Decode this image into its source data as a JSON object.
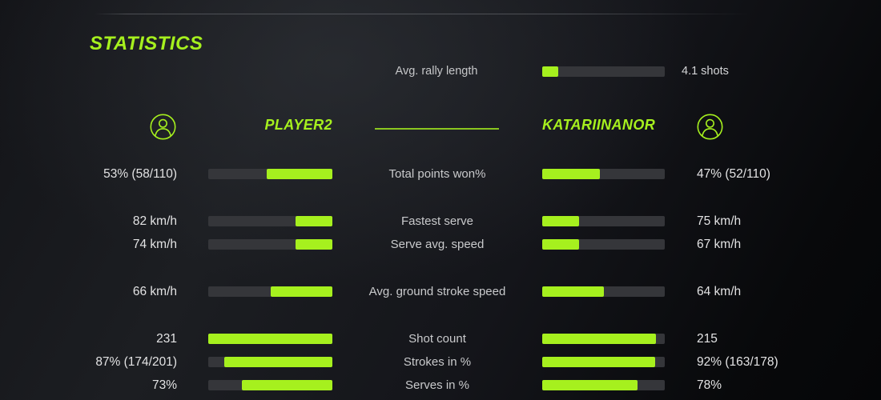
{
  "accent_color": "#a6f01e",
  "bar_track_color": "#35363a",
  "title": "STATISTICS",
  "rally": {
    "label": "Avg. rally length",
    "value": "4.1 shots",
    "fill_pct": 13
  },
  "players": {
    "left": {
      "name": "PLAYER2",
      "avatar_icon": "person-circle-icon"
    },
    "right": {
      "name": "KATARIINANOR",
      "avatar_icon": "person-circle-icon"
    }
  },
  "stats": [
    {
      "label": "Total points won%",
      "left_value": "53% (58/110)",
      "left_fill_pct": 53,
      "right_value": "47% (52/110)",
      "right_fill_pct": 47,
      "gap_before": false
    },
    {
      "label": "Fastest serve",
      "left_value": "82 km/h",
      "left_fill_pct": 30,
      "right_value": "75 km/h",
      "right_fill_pct": 30,
      "gap_before": true
    },
    {
      "label": "Serve avg. speed",
      "left_value": "74 km/h",
      "left_fill_pct": 30,
      "right_value": "67 km/h",
      "right_fill_pct": 30,
      "gap_before": false
    },
    {
      "label": "Avg. ground stroke speed",
      "left_value": "66 km/h",
      "left_fill_pct": 50,
      "right_value": "64 km/h",
      "right_fill_pct": 50,
      "gap_before": true
    },
    {
      "label": "Shot count",
      "left_value": "231",
      "left_fill_pct": 100,
      "right_value": "215",
      "right_fill_pct": 93,
      "gap_before": true
    },
    {
      "label": "Strokes in %",
      "left_value": "87% (174/201)",
      "left_fill_pct": 87,
      "right_value": "92% (163/178)",
      "right_fill_pct": 92,
      "gap_before": false
    },
    {
      "label": "Serves in %",
      "left_value": "73%",
      "left_fill_pct": 73,
      "right_value": "78%",
      "right_fill_pct": 78,
      "gap_before": false
    }
  ]
}
